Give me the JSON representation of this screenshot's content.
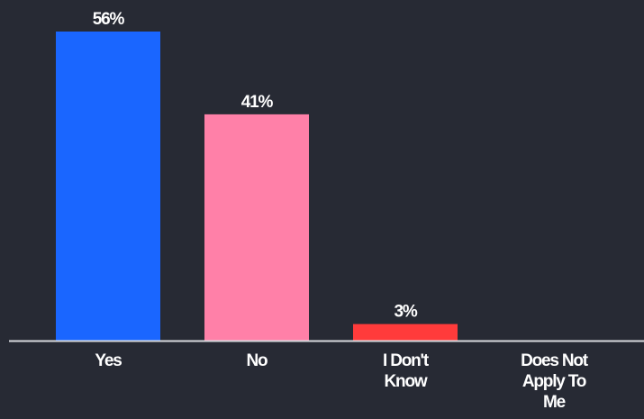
{
  "chart_data": {
    "type": "bar",
    "categories": [
      "Yes",
      "No",
      "I Don't Know",
      "Does Not Apply To Me"
    ],
    "category_lines": [
      [
        "Yes"
      ],
      [
        "No"
      ],
      [
        "I Don't",
        "Know"
      ],
      [
        "Does Not",
        "Apply To",
        "Me"
      ]
    ],
    "values": [
      56,
      41,
      3,
      0
    ],
    "value_labels": [
      "56%",
      "41%",
      "3%",
      ""
    ],
    "colors": [
      "#1a66ff",
      "#ff80a8",
      "#ff3b3b",
      "#9aa0aa"
    ],
    "unit": "%",
    "title": "",
    "xlabel": "",
    "ylabel": "",
    "ylim": [
      0,
      56
    ],
    "grid": false,
    "legend": "none",
    "axis_color": "#d7d9de",
    "background": "#272a34",
    "text_color": "#ffffff"
  }
}
